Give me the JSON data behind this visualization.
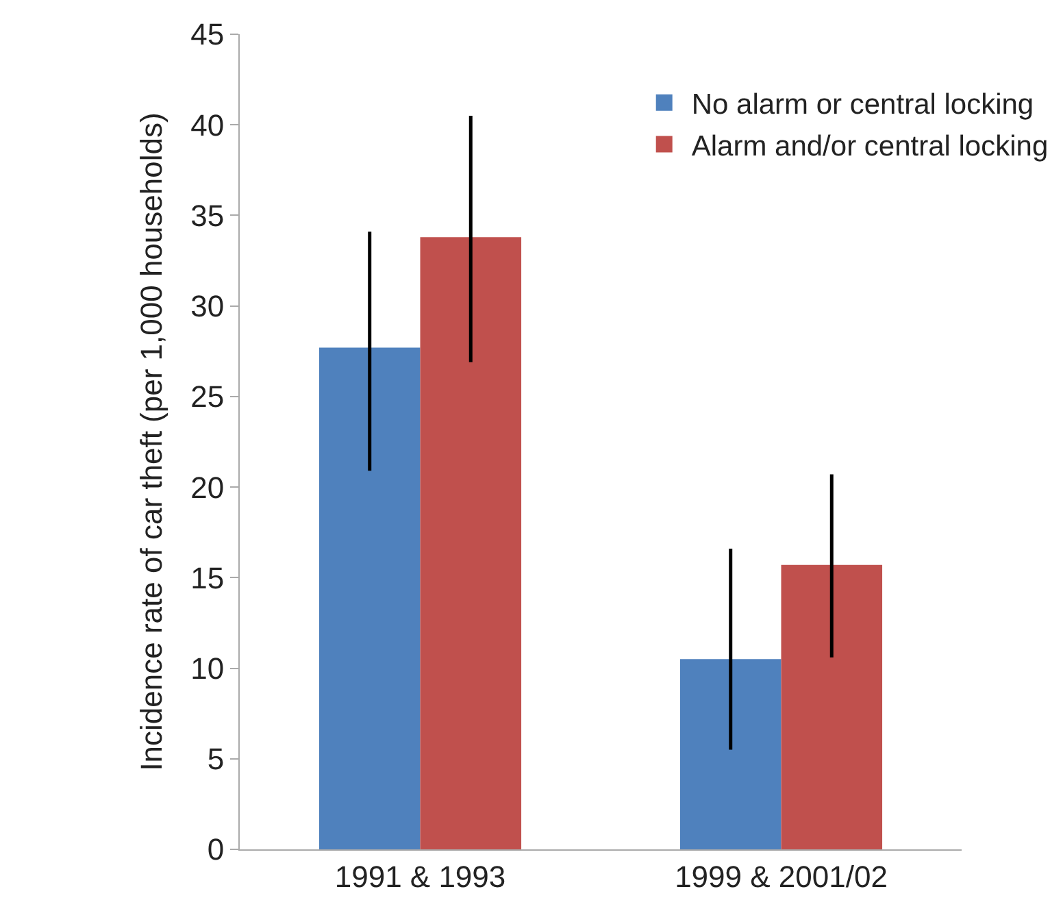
{
  "chart_data": {
    "type": "bar",
    "ylabel": "Incidence rate of car theft (per 1,000 households)",
    "categories": [
      "1991 & 1993",
      "1999 & 2001/02"
    ],
    "series": [
      {
        "name": "No alarm or central locking",
        "color": "#4f81bd",
        "values": [
          27.7,
          10.5
        ],
        "errors": [
          [
            20.9,
            34.1
          ],
          [
            5.5,
            16.6
          ]
        ]
      },
      {
        "name": "Alarm and/or central locking",
        "color": "#c0504d",
        "values": [
          33.8,
          15.7
        ],
        "errors": [
          [
            26.9,
            40.5
          ],
          [
            10.6,
            20.7
          ]
        ]
      }
    ],
    "ylim": [
      0,
      45
    ],
    "yticks": [
      0,
      5,
      10,
      15,
      20,
      25,
      30,
      35,
      40,
      45
    ],
    "grid": false,
    "legend": "top right"
  }
}
